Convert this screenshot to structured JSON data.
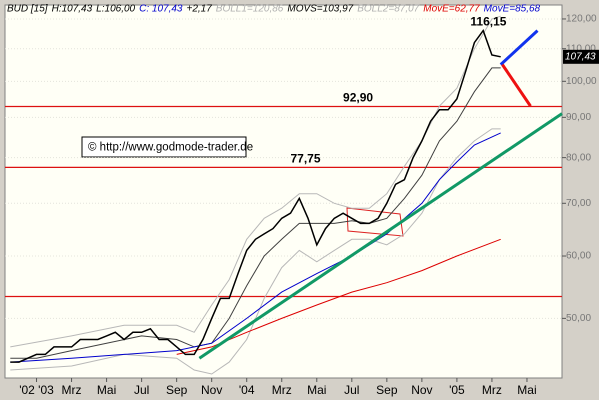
{
  "chart_data": {
    "type": "line",
    "header": [
      {
        "text": "BUD [15]",
        "color": "#000000"
      },
      {
        "text": "H:107,43",
        "color": "#000000"
      },
      {
        "text": "L:106,00",
        "color": "#000000"
      },
      {
        "text": "C: 107,43",
        "color": "#0000cc"
      },
      {
        "text": "+2,17",
        "color": "#000000"
      },
      {
        "text": "BOLL1=120,86",
        "color": "#b0b0b0"
      },
      {
        "text": "MOVS=103,97",
        "color": "#000000"
      },
      {
        "text": "BOLL2=87,07",
        "color": "#b0b0b0"
      },
      {
        "text": "MovE=62,77",
        "color": "#dd0000"
      },
      {
        "text": "MovE=85,68",
        "color": "#0000cc"
      }
    ],
    "copyright": "© http://www.godmode-trader.de",
    "last_price": {
      "value": 107.43,
      "label": "107,43"
    },
    "log_scale": true,
    "xlim": [
      -1.8,
      30
    ],
    "ylim": [
      42,
      125
    ],
    "xticks": [
      {
        "value": 0,
        "label": "'02 '03"
      },
      {
        "value": 2,
        "label": "Mrz"
      },
      {
        "value": 4,
        "label": "Mai"
      },
      {
        "value": 6,
        "label": "Jul"
      },
      {
        "value": 8,
        "label": "Sep"
      },
      {
        "value": 10,
        "label": "Nov"
      },
      {
        "value": 12,
        "label": "'04"
      },
      {
        "value": 14,
        "label": "Mrz"
      },
      {
        "value": 16,
        "label": "Mai"
      },
      {
        "value": 18,
        "label": "Jul"
      },
      {
        "value": 20,
        "label": "Sep"
      },
      {
        "value": 22,
        "label": "Nov"
      },
      {
        "value": 24,
        "label": "'05"
      },
      {
        "value": 26,
        "label": "Mrz"
      },
      {
        "value": 28,
        "label": "Mai"
      }
    ],
    "yticks": [
      {
        "value": 50,
        "label": "50,00"
      },
      {
        "value": 60,
        "label": "60,00"
      },
      {
        "value": 70,
        "label": "70,00"
      },
      {
        "value": 80,
        "label": "80,00"
      },
      {
        "value": 90,
        "label": "90,00"
      },
      {
        "value": 100,
        "label": "100,00"
      },
      {
        "value": 110,
        "label": "110,00"
      },
      {
        "value": 120,
        "label": "120,00"
      }
    ],
    "grid": true,
    "series": [
      {
        "name": "BOLL1",
        "color": "#b8b8b8",
        "width": 1,
        "x": [
          -1.5,
          2,
          5,
          8,
          9,
          10,
          11,
          12,
          13,
          14,
          15,
          16,
          17,
          18,
          19,
          20,
          21,
          22,
          23,
          24,
          25,
          26,
          26.5
        ],
        "values": [
          46,
          47.5,
          49,
          49,
          48,
          52,
          56,
          63,
          67,
          69,
          72,
          72,
          70,
          69,
          69,
          72,
          78,
          84,
          93,
          98,
          110,
          120,
          121
        ]
      },
      {
        "name": "BOLL2",
        "color": "#b8b8b8",
        "width": 1,
        "x": [
          -1.5,
          2,
          5,
          8,
          9,
          10,
          11,
          12,
          13,
          14,
          15,
          16,
          17,
          18,
          19,
          20,
          21,
          22,
          23,
          24,
          25,
          26,
          26.5
        ],
        "values": [
          43,
          43.5,
          45,
          44.5,
          43,
          42.5,
          44,
          47,
          53,
          58,
          61,
          59,
          61,
          63,
          63,
          62,
          64,
          68,
          75,
          80,
          84,
          87,
          87
        ]
      },
      {
        "name": "MOVS",
        "color": "#404040",
        "width": 1,
        "x": [
          -1.5,
          0,
          2,
          4,
          6,
          8,
          9,
          10,
          11,
          12,
          13,
          14,
          15,
          16,
          17,
          18,
          19,
          20,
          21,
          22,
          23,
          24,
          25,
          26,
          26.5
        ],
        "values": [
          44.5,
          44.5,
          45.5,
          46.5,
          47.5,
          47,
          46,
          46.5,
          50,
          55,
          60,
          63,
          66,
          66,
          66,
          66.5,
          66,
          67,
          71,
          76,
          84,
          89,
          97,
          104,
          104
        ]
      },
      {
        "name": "MovE 1",
        "color": "#dd0000",
        "width": 1,
        "x": [
          8,
          10,
          12,
          14,
          16,
          18,
          20,
          22,
          24,
          26.5
        ],
        "values": [
          45,
          46,
          48,
          50,
          52,
          54,
          55.5,
          57.5,
          60,
          63
        ]
      },
      {
        "name": "MovE 2",
        "color": "#0000cc",
        "width": 1,
        "x": [
          -1.5,
          2,
          5,
          8,
          10,
          12,
          14,
          16,
          18,
          20,
          22,
          23,
          24,
          25,
          26.5
        ],
        "values": [
          44,
          44.5,
          45,
          45.5,
          46.5,
          50,
          54,
          57,
          60,
          64,
          70,
          75,
          79,
          83,
          86
        ]
      },
      {
        "name": "BUD",
        "color": "#000000",
        "width": 1.5,
        "x": [
          -1.5,
          -1,
          -0.5,
          0,
          0.5,
          1,
          1.5,
          2,
          2.5,
          3,
          3.5,
          4,
          4.5,
          5,
          5.5,
          6,
          6.5,
          7,
          7.5,
          8,
          8.5,
          9,
          9.5,
          10,
          10.5,
          11,
          11.5,
          12,
          12.5,
          13,
          13.5,
          14,
          14.5,
          15,
          15.5,
          16,
          16.5,
          17,
          17.5,
          18,
          18.5,
          19,
          19.5,
          20,
          20.5,
          21,
          21.5,
          22,
          22.5,
          23,
          23.5,
          24,
          24.5,
          25,
          25.5,
          26,
          26.5
        ],
        "values": [
          44,
          44,
          44.5,
          45,
          45,
          46,
          46,
          46,
          47,
          47,
          47,
          47.5,
          48,
          47,
          48,
          48,
          48.5,
          47,
          47,
          46,
          45,
          45,
          47,
          50,
          53,
          53,
          57,
          61,
          63,
          64,
          65,
          67,
          68,
          71,
          67,
          62,
          65,
          67,
          68,
          67,
          66,
          66,
          67,
          70,
          74,
          75,
          80,
          84,
          89,
          92,
          92,
          95,
          103,
          112,
          116,
          108,
          107.43
        ]
      }
    ],
    "levels": [
      {
        "value": 92.9,
        "label": "92,90",
        "label_x": 17.5
      },
      {
        "value": 77.75,
        "label": "77,75",
        "label_x": 14.5
      },
      {
        "value": 53.3
      }
    ],
    "peak": {
      "value": 116.15,
      "label": "116,15",
      "x": 25.8
    },
    "trendlines": [
      {
        "color": "#119966",
        "width": 3,
        "x": [
          9.3,
          30
        ],
        "values": [
          44.5,
          91
        ]
      },
      {
        "color": "#1133ee",
        "width": 3,
        "x": [
          26.5,
          28.6
        ],
        "values": [
          105,
          116
        ]
      },
      {
        "color": "#ee1111",
        "width": 3,
        "x": [
          26.6,
          28.2
        ],
        "values": [
          105,
          93
        ]
      }
    ]
  }
}
